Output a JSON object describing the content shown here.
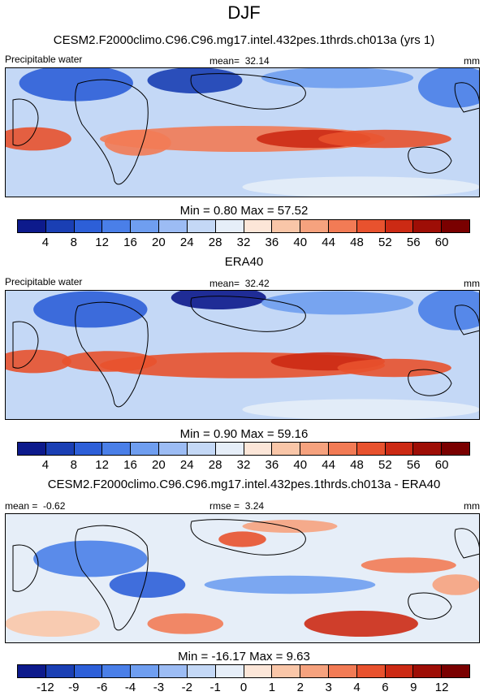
{
  "figure": {
    "title": "DJF"
  },
  "chart_data": [
    {
      "type": "heatmap",
      "panel": "model",
      "title": "CESM2.F2000climo.C96.C96.mg17.intel.432pes.1thrds.ch013a (yrs 1)",
      "variable": "Precipitable water",
      "mean_label": "mean=",
      "mean": "32.14",
      "units": "mm",
      "min_label": "Min =",
      "min": "0.80",
      "max_label": "Max =",
      "max": "57.52",
      "levels": [
        "4",
        "8",
        "12",
        "16",
        "20",
        "24",
        "28",
        "32",
        "36",
        "40",
        "44",
        "48",
        "52",
        "56",
        "60"
      ]
    },
    {
      "type": "heatmap",
      "panel": "observation",
      "title": "ERA40",
      "variable": "Precipitable water",
      "mean_label": "mean=",
      "mean": "32.42",
      "units": "mm",
      "min_label": "Min =",
      "min": "0.90",
      "max_label": "Max =",
      "max": "59.16",
      "levels": [
        "4",
        "8",
        "12",
        "16",
        "20",
        "24",
        "28",
        "32",
        "36",
        "40",
        "44",
        "48",
        "52",
        "56",
        "60"
      ]
    },
    {
      "type": "heatmap",
      "panel": "difference",
      "title": "CESM2.F2000climo.C96.C96.mg17.intel.432pes.1thrds.ch013a - ERA40",
      "mean_label": "mean =",
      "mean": "-0.62",
      "rmse_label": "rmse =",
      "rmse": "3.24",
      "units": "mm",
      "min_label": "Min =",
      "min": "-16.17",
      "max_label": "Max =",
      "max": "9.63",
      "levels": [
        "-12",
        "-9",
        "-6",
        "-4",
        "-3",
        "-2",
        "-1",
        "0",
        "1",
        "2",
        "3",
        "4",
        "6",
        "9",
        "12"
      ]
    }
  ],
  "colors": {
    "palette": [
      "#0d1a8c",
      "#1a3fb4",
      "#2d5fd8",
      "#4a7fe8",
      "#6f9ef0",
      "#9cbcf4",
      "#c4d8f6",
      "#e6eef8",
      "#fce6d8",
      "#f9c6a8",
      "#f6a27e",
      "#f27b55",
      "#e8522e",
      "#cc2a14",
      "#9e0e06",
      "#7a0000"
    ],
    "frame": "#000000"
  }
}
